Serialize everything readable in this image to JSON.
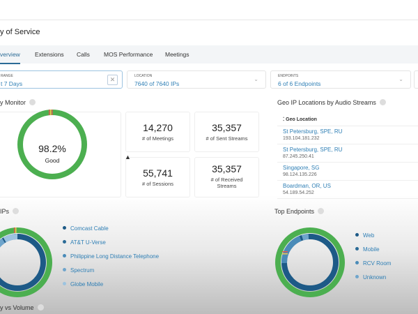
{
  "page": {
    "title": "y of Service"
  },
  "tabs": [
    {
      "label": "verview",
      "active": true
    },
    {
      "label": "Extensions"
    },
    {
      "label": "Calls"
    },
    {
      "label": "MOS Performance"
    },
    {
      "label": "Meetings"
    }
  ],
  "filters": [
    {
      "label": "RANGE",
      "value": "t 7 Days"
    },
    {
      "label": "LOCATION",
      "value": "7640 of 7640 IPs"
    },
    {
      "label": "ENDPOINTS",
      "value": "6 of 6 Endpoints"
    }
  ],
  "monitor": {
    "title": "y Monitor",
    "percent": "98.2%",
    "status": "Good",
    "good_fraction": 0.982
  },
  "stats": [
    {
      "value": "14,270",
      "label": "# of Meetings"
    },
    {
      "value": "35,357",
      "label": "# of Sent Streams"
    },
    {
      "value": "55,741",
      "label": "# of Sessions"
    },
    {
      "value": "35,357",
      "label": "# of Received Streams"
    }
  ],
  "geo": {
    "title": "Geo IP Locations by Audio Streams",
    "column": "Geo Location",
    "rows": [
      {
        "location": "St Petersburg, SPE, RU",
        "ip": "193.104.181.232"
      },
      {
        "location": "St Petersburg, SPE, RU",
        "ip": "87.245.250.41"
      },
      {
        "location": "Singapore, SG",
        "ip": "98.124.135.226"
      },
      {
        "location": "Boardman, OR, US",
        "ip": "54.189.54.252"
      }
    ]
  },
  "isps": {
    "title": "IPs",
    "legend": [
      {
        "label": "Comcast Cable",
        "color": "#1d5a87"
      },
      {
        "label": "AT&T U-Verse",
        "color": "#2b6b96"
      },
      {
        "label": "Philippine Long Distance Telephone",
        "color": "#4a8bb8"
      },
      {
        "label": "Spectrum",
        "color": "#6fa5cc"
      },
      {
        "label": "Globe Mobile",
        "color": "#9cc3e0"
      }
    ]
  },
  "endpoints": {
    "title": "Top Endpoints",
    "legend": [
      {
        "label": "Web",
        "color": "#1d5a87"
      },
      {
        "label": "Mobile",
        "color": "#2b6b96"
      },
      {
        "label": "RCV Room",
        "color": "#4a8bb8"
      },
      {
        "label": "Unknown",
        "color": "#6fa5cc"
      }
    ]
  },
  "footer": {
    "title": "y vs Volume"
  },
  "colors": {
    "good": "#4caf50",
    "accent": "#2f7fb5",
    "warn": "#f2c94c",
    "bad": "#e05a4e"
  }
}
